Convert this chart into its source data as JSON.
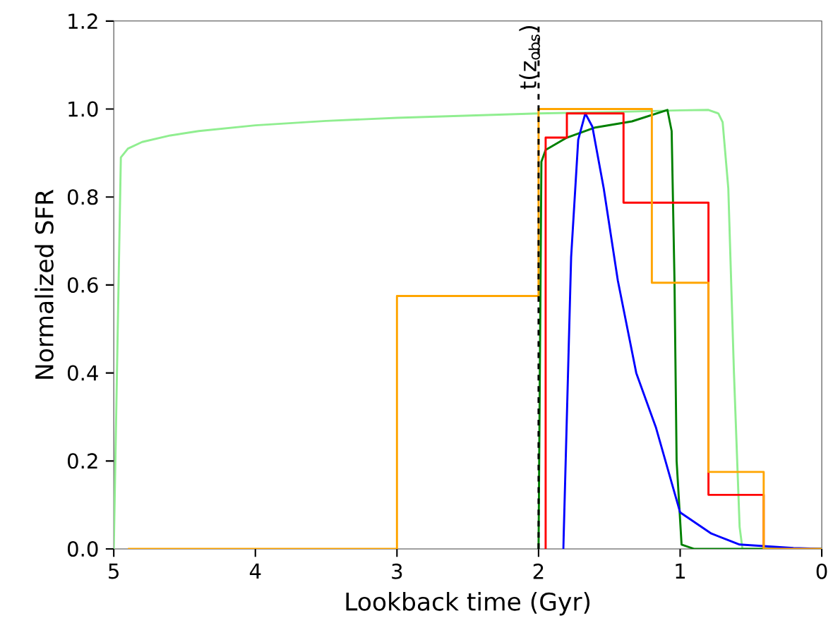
{
  "chart_data": {
    "type": "line",
    "xlabel": "Lookback time (Gyr)",
    "ylabel": "Normalized SFR",
    "xlim": [
      5,
      0
    ],
    "ylim": [
      0,
      1.2
    ],
    "xticks": [
      5,
      4,
      3,
      2,
      1,
      0
    ],
    "yticks": [
      {
        "value": 0,
        "label": "0.0"
      },
      {
        "value": 0.2,
        "label": "0.2"
      },
      {
        "value": 0.4,
        "label": "0.4"
      },
      {
        "value": 0.6,
        "label": "0.6"
      },
      {
        "value": 0.8,
        "label": "0.8"
      },
      {
        "value": 1.0,
        "label": "1.0"
      },
      {
        "value": 1.2,
        "label": "1.2"
      }
    ],
    "series": [
      {
        "color": "#90ee90",
        "x": [
          5,
          4.95,
          4.9,
          4.8,
          4.6,
          4.4,
          4,
          3.5,
          3,
          2.5,
          2,
          1.5,
          1,
          0.8,
          0.73,
          0.7,
          0.66,
          0.62,
          0.58,
          0.56,
          0
        ],
        "values": [
          0,
          0.89,
          0.91,
          0.925,
          0.94,
          0.95,
          0.963,
          0.973,
          0.98,
          0.985,
          0.99,
          0.993,
          0.997,
          0.998,
          0.99,
          0.97,
          0.82,
          0.4,
          0.05,
          0,
          0
        ]
      },
      {
        "color": "#008000",
        "x": [
          2,
          1.98,
          1.95,
          1.8,
          1.6,
          1.34,
          1.09,
          1.06,
          1.04,
          1.025,
          0.99,
          0.9,
          0
        ],
        "values": [
          0,
          0.88,
          0.907,
          0.935,
          0.958,
          0.972,
          0.998,
          0.95,
          0.61,
          0.2,
          0.01,
          0,
          0
        ]
      },
      {
        "color": "#0000ff",
        "x": [
          1.825,
          1.77,
          1.72,
          1.67,
          1.62,
          1.54,
          1.44,
          1.31,
          1.17,
          1.0,
          0.78,
          0.58,
          0.2,
          0
        ],
        "values": [
          0,
          0.663,
          0.93,
          0.99,
          0.96,
          0.82,
          0.61,
          0.4,
          0.275,
          0.083,
          0.035,
          0.01,
          0.002,
          0
        ]
      },
      {
        "type": "step",
        "color": "#ff0000",
        "x": [
          1.95,
          1.95,
          1.8,
          1.4,
          0.8,
          0.41
        ],
        "values": [
          0,
          0.935,
          0.99,
          0.787,
          0.123,
          0
        ]
      },
      {
        "type": "step",
        "color": "#ffa500",
        "x": [
          4.9,
          3,
          2,
          1.2,
          0.8,
          0.41,
          0
        ],
        "values": [
          0,
          0.575,
          1.0,
          0.605,
          0.175,
          0,
          0
        ]
      }
    ],
    "ref_lines": [
      {
        "axis": "x",
        "value": 2,
        "label": "t(z$_{obs}$)",
        "color": "#000000",
        "line_style": "dashed"
      }
    ]
  }
}
